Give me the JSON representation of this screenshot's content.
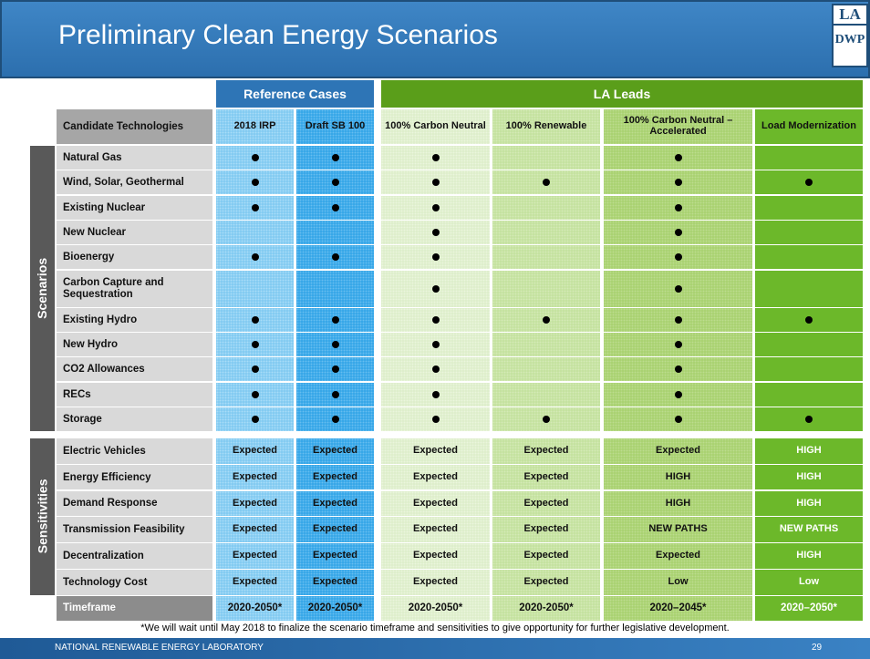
{
  "header": {
    "title": "Preliminary Clean Energy Scenarios",
    "logo": [
      "LA",
      "DWP"
    ]
  },
  "table": {
    "groups": [
      "Reference Cases",
      "LA Leads"
    ],
    "columns": [
      "Candidate Technologies",
      "2018 IRP",
      "Draft SB 100",
      "100% Carbon Neutral",
      "100% Renewable",
      "100% Carbon Neutral – Accelerated",
      "Load Modernization"
    ],
    "sections": [
      {
        "label": "Scenarios",
        "rows": [
          {
            "label": "Natural Gas",
            "cells": [
              true,
              true,
              true,
              false,
              true,
              false
            ]
          },
          {
            "label": "Wind, Solar, Geothermal",
            "cells": [
              true,
              true,
              true,
              true,
              true,
              true
            ]
          },
          {
            "label": "Existing Nuclear",
            "cells": [
              true,
              true,
              true,
              false,
              true,
              false
            ]
          },
          {
            "label": "New Nuclear",
            "cells": [
              false,
              false,
              true,
              false,
              true,
              false
            ]
          },
          {
            "label": "Bioenergy",
            "cells": [
              true,
              true,
              true,
              false,
              true,
              false
            ]
          },
          {
            "label": "Carbon Capture and Sequestration",
            "cells": [
              false,
              false,
              true,
              false,
              true,
              false
            ]
          },
          {
            "label": "Existing Hydro",
            "cells": [
              true,
              true,
              true,
              true,
              true,
              true
            ]
          },
          {
            "label": "New Hydro",
            "cells": [
              true,
              true,
              true,
              false,
              true,
              false
            ]
          },
          {
            "label": "CO2 Allowances",
            "cells": [
              true,
              true,
              true,
              false,
              true,
              false
            ]
          },
          {
            "label": "RECs",
            "cells": [
              true,
              true,
              true,
              false,
              true,
              false
            ]
          },
          {
            "label": "Storage",
            "cells": [
              true,
              true,
              true,
              true,
              true,
              true
            ]
          }
        ]
      },
      {
        "label": "Sensitivities",
        "rows": [
          {
            "label": "Electric Vehicles",
            "cells": [
              "Expected",
              "Expected",
              "Expected",
              "Expected",
              "Expected",
              "HIGH"
            ]
          },
          {
            "label": "Energy Efficiency",
            "cells": [
              "Expected",
              "Expected",
              "Expected",
              "Expected",
              "HIGH",
              "HIGH"
            ]
          },
          {
            "label": "Demand Response",
            "cells": [
              "Expected",
              "Expected",
              "Expected",
              "Expected",
              "HIGH",
              "HIGH"
            ]
          },
          {
            "label": "Transmission Feasibility",
            "cells": [
              "Expected",
              "Expected",
              "Expected",
              "Expected",
              "NEW PATHS",
              "NEW PATHS"
            ]
          },
          {
            "label": "Decentralization",
            "cells": [
              "Expected",
              "Expected",
              "Expected",
              "Expected",
              "Expected",
              "HIGH"
            ]
          },
          {
            "label": "Technology Cost",
            "cells": [
              "Expected",
              "Expected",
              "Expected",
              "Expected",
              "Low",
              "Low"
            ]
          }
        ]
      }
    ],
    "timeframe": {
      "label": "Timeframe",
      "cells": [
        "2020-2050*",
        "2020-2050*",
        "2020-2050*",
        "2020-2050*",
        "2020–2045*",
        "2020–2050*"
      ]
    }
  },
  "footnote": "*We will wait until May 2018 to finalize the scenario timeframe and sensitivities to give opportunity for further legislative development.",
  "footer": {
    "organization": "NATIONAL RENEWABLE ENERGY LABORATORY",
    "page": 29
  }
}
